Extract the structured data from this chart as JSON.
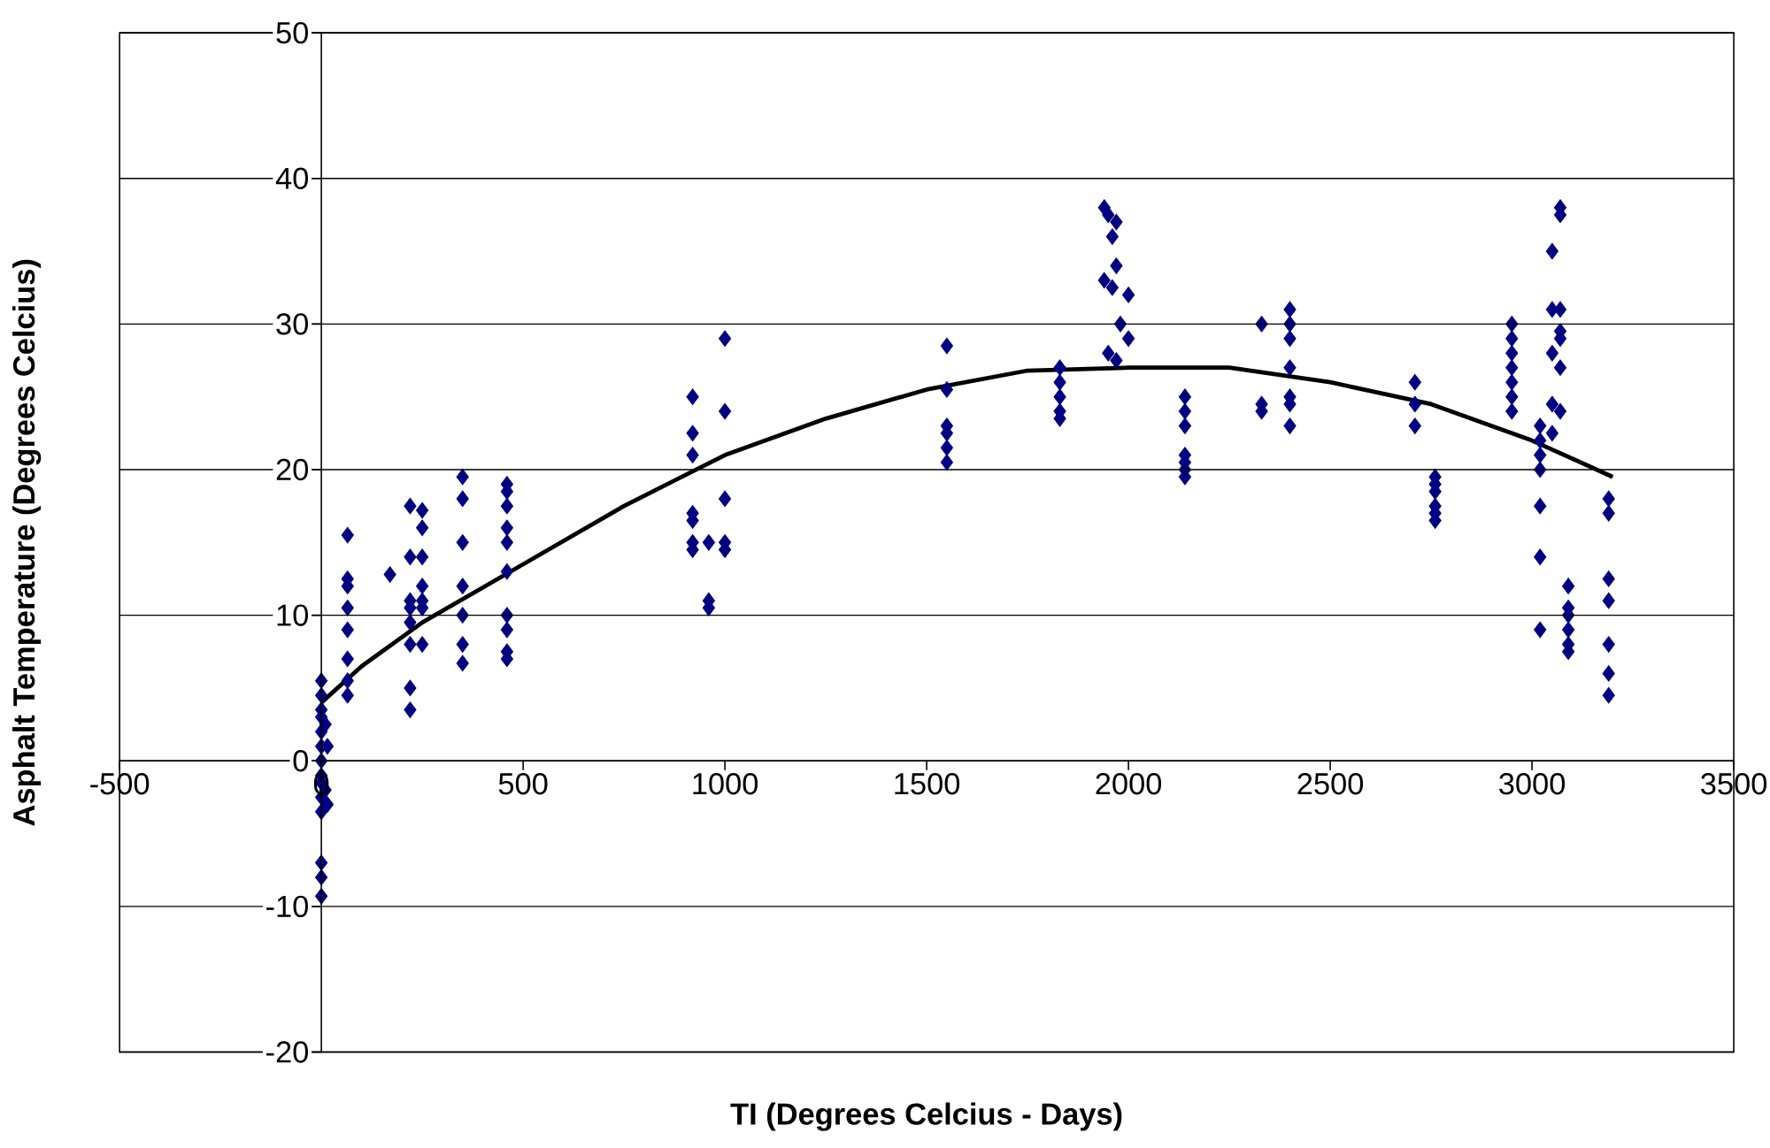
{
  "chart_data": {
    "type": "scatter",
    "xlabel": "TI (Degrees Celcius - Days)",
    "ylabel": "Asphalt Temperature (Degrees Celcius)",
    "xlim": [
      -500,
      3500
    ],
    "ylim": [
      -20,
      50
    ],
    "xticks": [
      -500,
      0,
      500,
      1000,
      1500,
      2000,
      2500,
      3000,
      3500
    ],
    "yticks": [
      -20,
      -10,
      0,
      10,
      20,
      30,
      40,
      50
    ],
    "grid": "y",
    "marker": "diamond",
    "series": [
      {
        "type": "scatter",
        "color": "#000080",
        "x": [
          0,
          0,
          0,
          0,
          0,
          0,
          0,
          0,
          0,
          0,
          0,
          0,
          0,
          0,
          10,
          15,
          10,
          15,
          65,
          65,
          65,
          65,
          65,
          65,
          65,
          65,
          170,
          220,
          220,
          220,
          220,
          220,
          220,
          220,
          220,
          250,
          250,
          250,
          250,
          250,
          250,
          250,
          350,
          350,
          350,
          350,
          350,
          350,
          350,
          460,
          460,
          460,
          460,
          460,
          460,
          460,
          460,
          460,
          460,
          920,
          920,
          920,
          920,
          920,
          920,
          920,
          960,
          960,
          960,
          1000,
          1000,
          1000,
          1000,
          1000,
          1550,
          1550,
          1550,
          1550,
          1550,
          1550,
          1830,
          1830,
          1830,
          1830,
          1830,
          1940,
          1950,
          1970,
          1960,
          1970,
          1940,
          1960,
          2000,
          1980,
          2000,
          1950,
          1970,
          2140,
          2140,
          2140,
          2140,
          2140,
          2140,
          2140,
          2330,
          2330,
          2330,
          2400,
          2400,
          2400,
          2400,
          2400,
          2400,
          2400,
          2710,
          2710,
          2710,
          2760,
          2760,
          2760,
          2760,
          2760,
          2760,
          2950,
          2950,
          2950,
          2950,
          2950,
          2950,
          2950,
          3020,
          3020,
          3020,
          3020,
          3020,
          3020,
          3020,
          3050,
          3050,
          3050,
          3050,
          3050,
          3070,
          3070,
          3070,
          3070,
          3070,
          3070,
          3070,
          3090,
          3090,
          3090,
          3090,
          3090,
          3090,
          3190,
          3190,
          3190,
          3190,
          3190,
          3190,
          3190
        ],
        "values": [
          -9.3,
          -8,
          -7,
          -3.5,
          -2.5,
          -1.5,
          -1,
          0,
          1,
          2,
          3,
          3.5,
          4.5,
          5.5,
          -2,
          1,
          2.5,
          -3,
          15.5,
          12.5,
          12,
          10.5,
          9,
          7,
          5.5,
          4.5,
          12.8,
          17.5,
          14,
          11,
          10.5,
          9.5,
          8,
          5,
          3.5,
          17.2,
          16,
          14,
          12,
          11,
          10.5,
          8,
          19.5,
          18,
          15,
          12,
          10,
          8,
          6.7,
          19,
          18.5,
          17.5,
          16,
          15,
          13,
          10,
          9,
          7.5,
          7,
          25,
          22.5,
          21,
          17,
          16.5,
          15,
          14.5,
          15,
          11,
          10.5,
          29,
          24,
          18,
          15,
          14.5,
          28.5,
          25.5,
          23,
          22.5,
          21.5,
          20.5,
          27,
          26,
          25,
          24,
          23.5,
          38,
          37.5,
          37,
          36,
          34,
          33,
          32.5,
          32,
          30,
          29,
          28,
          27.5,
          25,
          24,
          23,
          21,
          20.5,
          20,
          19.5,
          30,
          24.5,
          24,
          31,
          30,
          29,
          27,
          25,
          24.5,
          23,
          26,
          24.5,
          23,
          19.5,
          19,
          18.5,
          17.5,
          17,
          16.5,
          30,
          29,
          28,
          27,
          26,
          25,
          24,
          23,
          22,
          21,
          20,
          17.5,
          14,
          9,
          35,
          31,
          28,
          24.5,
          22.5,
          38,
          37.5,
          31,
          29.5,
          29,
          27,
          24,
          12,
          10.5,
          10,
          9,
          8,
          7.5,
          18,
          17,
          12.5,
          11,
          8,
          6,
          4.5
        ]
      },
      {
        "type": "line",
        "color": "#000000",
        "marker": "none",
        "line_style": "solid",
        "x": [
          0,
          100,
          250,
          500,
          750,
          1000,
          1250,
          1500,
          1750,
          2000,
          2250,
          2500,
          2750,
          3000,
          3200
        ],
        "values": [
          4,
          6.5,
          9.5,
          13.5,
          17.5,
          21,
          23.5,
          25.5,
          26.8,
          27,
          27,
          26,
          24.5,
          22,
          19.5
        ]
      }
    ]
  }
}
